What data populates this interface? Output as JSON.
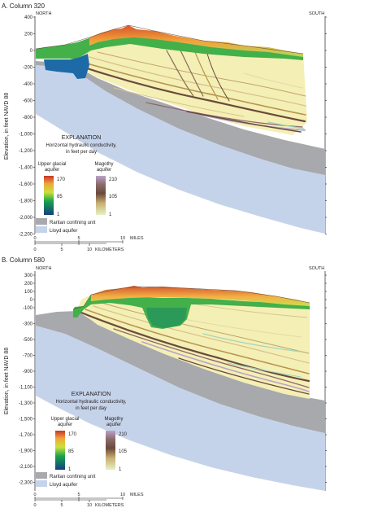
{
  "colors": {
    "lloyd": "#c5d3ea",
    "raritan": "#a7a9ac",
    "magothy_scale": [
      "#f7f3c2",
      "#b8934f",
      "#6b4a3c",
      "#b9a3c9"
    ],
    "glacial_scale": [
      "#133f83",
      "#19a44a",
      "#c9e23c",
      "#f0a53a",
      "#c7342c"
    ]
  },
  "panels": [
    {
      "id": "a",
      "title": "A.  Column 320",
      "north": "NORTH",
      "south": "SOUTH",
      "y_axis_label": "Elevation, in feet NAVD 88",
      "y_ticks": [
        "400",
        "200",
        "0",
        "-200",
        "-400",
        "-600",
        "-800",
        "-1,000",
        "-1,200",
        "-1,400",
        "-1,600",
        "-1,800",
        "-2,000",
        "-2,200"
      ],
      "legend": {
        "title": "EXPLANATION",
        "subtitle_line1": "Horizontal hydraulic conductivity,",
        "subtitle_line2": "in feet per day",
        "glacial_line1": "Upper glacial",
        "glacial_line2": "aquifer",
        "magothy_line1": "Magothy",
        "magothy_line2": "aquifer",
        "glacial_ticks": [
          "170",
          "85",
          "1"
        ],
        "magothy_ticks": [
          "210",
          "105",
          "1"
        ],
        "raritan_label": "Raritan confining unit",
        "lloyd_label": "Lloyd aquifer"
      },
      "scale": {
        "mile_ticks": [
          "0",
          "5",
          "10"
        ],
        "miles_label": "MILES",
        "km_ticks": [
          "0",
          "5",
          "10"
        ],
        "km_label": "KILOMETERS"
      }
    },
    {
      "id": "b",
      "title": "B.  Column 580",
      "north": "NORTH",
      "south": "SOUTH",
      "y_axis_label": "Elevation, in feet NAVD 88",
      "y_ticks": [
        "300",
        "200",
        "100",
        "0",
        "-100",
        "-300",
        "-500",
        "-700",
        "-900",
        "-1,100",
        "-1,300",
        "-1,500",
        "-1,700",
        "-1,900",
        "-2,100",
        "-2,300"
      ],
      "legend": {
        "title": "EXPLANATION",
        "subtitle_line1": "Horizontal hydraulic conductivity,",
        "subtitle_line2": "in feet per day",
        "glacial_line1": "Upper glacial",
        "glacial_line2": "aquifer",
        "magothy_line1": "Magothy",
        "magothy_line2": "aquifer",
        "glacial_ticks": [
          "170",
          "85",
          "1"
        ],
        "magothy_ticks": [
          "210",
          "105",
          "1"
        ],
        "raritan_label": "Raritan confining unit",
        "lloyd_label": "Lloyd aquifer"
      },
      "scale": {
        "mile_ticks": [
          "0",
          "5",
          "10"
        ],
        "miles_label": "MILES",
        "km_ticks": [
          "0",
          "5",
          "10"
        ],
        "km_label": "KILOMETERS"
      }
    }
  ]
}
